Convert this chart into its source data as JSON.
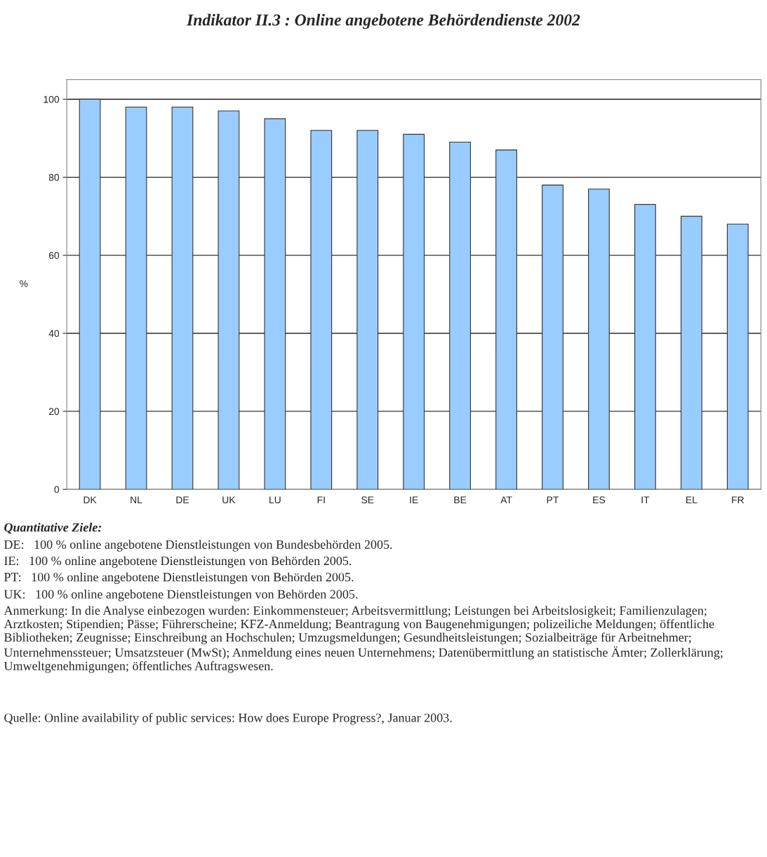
{
  "chart_data": {
    "type": "bar",
    "title": "Indikator II.3 : Online angebotene Behördendienste 2002",
    "ylabel": "%",
    "categories": [
      "DK",
      "NL",
      "DE",
      "UK",
      "LU",
      "FI",
      "SE",
      "IE",
      "BE",
      "AT",
      "PT",
      "ES",
      "IT",
      "EL",
      "FR"
    ],
    "values": [
      100,
      98,
      98,
      97,
      95,
      92,
      92,
      91,
      89,
      87,
      78,
      77,
      73,
      70,
      68
    ],
    "color": "#99ccff",
    "ylim": [
      0,
      105
    ],
    "yticks": [
      0,
      20,
      40,
      60,
      80,
      100
    ],
    "grid": "y",
    "legend": false,
    "annotations": [
      "Quantitative Ziele:",
      "DE:   100 % online angebotene Dienstleistungen von Bundesbehörden 2005.",
      "IE:   100 % online angebotene Dienstleistungen von Behörden 2005.",
      "PT:   100 % online angebotene Dienstleistungen von Behörden 2005.",
      "UK:   100 % online angebotene Dienstleistungen von Behörden 2005.",
      "Anmerkung: In die Analyse einbezogen wurden: Einkommensteuer; Arbeitsvermittlung; Leistungen bei Arbeitslosigkeit; Familienzulagen; Arztkosten; Stipendien; Pässe; Führerscheine; KFZ-Anmeldung; Beantragung von Baugenehmigungen; polizeiliche Meldungen; öffentliche Bibliotheken; Zeugnisse; Einschreibung an Hochschulen; Umzugsmeldungen; Gesundheitsleistungen; Sozialbeiträge für Arbeitnehmer; Unternehmenssteuer; Umsatzsteuer (MwSt); Anmeldung eines neuen Unternehmens; Datenübermittlung an statistische Ämter; Zollerklärung; Umweltgenehmigungen; öffentliches Auftragswesen.",
      "Quelle: Online availability of public services: How does Europe Progress?, Januar 2003."
    ]
  }
}
